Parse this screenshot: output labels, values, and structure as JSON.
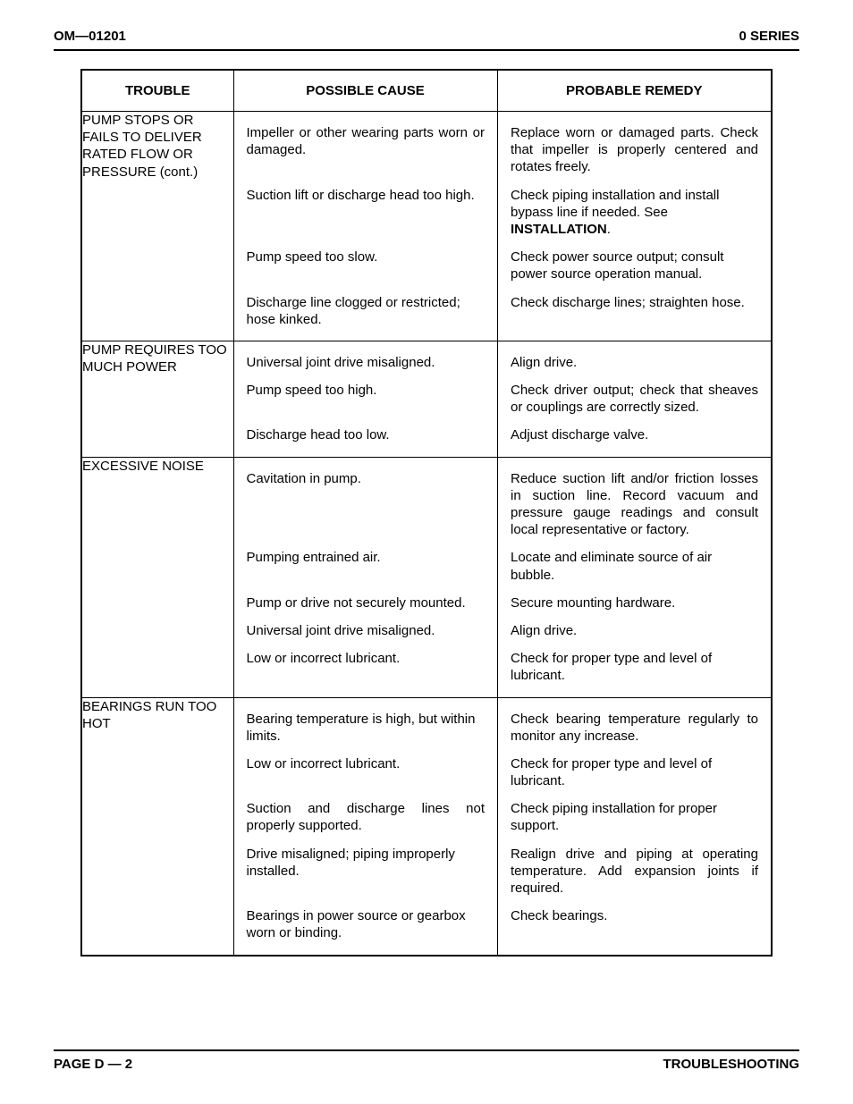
{
  "header": {
    "left": "OM—01201",
    "right": "0 SERIES"
  },
  "columns": {
    "trouble": "TROUBLE",
    "cause": "POSSIBLE CAUSE",
    "remedy": "PROBABLE REMEDY"
  },
  "sections": [
    {
      "trouble": "PUMP STOPS OR FAILS TO DELIVER RATED FLOW OR PRESSURE (cont.)",
      "rows": [
        {
          "cause": "Impeller or other wearing parts worn or damaged.",
          "cause_justify": true,
          "remedy_html": "Replace worn or damaged parts. Check that impeller is properly centered and rotates freely.",
          "remedy_justify": true
        },
        {
          "cause": "Suction lift or discharge head too high.",
          "remedy_html": "Check piping installation and install bypass line if needed. See <b>INSTALLATION</b>."
        },
        {
          "cause": "Pump speed too slow.",
          "remedy_html": "Check power source output; consult power source operation manual."
        },
        {
          "cause": "Discharge line clogged or restricted; hose kinked.",
          "remedy_html": "Check discharge lines; straighten hose.",
          "remedy_justify": true
        }
      ]
    },
    {
      "trouble": "PUMP REQUIRES TOO MUCH POWER",
      "rows": [
        {
          "cause": "Universal joint drive misaligned.",
          "remedy_html": "Align drive."
        },
        {
          "cause": "Pump speed too high.",
          "remedy_html": "Check driver output; check that sheaves or couplings are correctly sized.",
          "remedy_justify": true
        },
        {
          "cause": "Discharge head too low.",
          "remedy_html": "Adjust discharge valve."
        }
      ]
    },
    {
      "trouble": "EXCESSIVE NOISE",
      "rows": [
        {
          "cause": "Cavitation in pump.",
          "remedy_html": "Reduce suction lift and/or friction losses in suction line. Record vacuum and pressure gauge readings and consult local representative or factory.",
          "remedy_justify": true
        },
        {
          "cause": "Pumping entrained air.",
          "remedy_html": "Locate and eliminate source of air bubble."
        },
        {
          "cause": "Pump or drive not securely mounted.",
          "remedy_html": "Secure mounting hardware."
        },
        {
          "cause": "Universal joint drive misaligned.",
          "remedy_html": "Align drive."
        },
        {
          "cause": "Low or incorrect lubricant.",
          "remedy_html": "Check for proper type and level of lubricant."
        }
      ]
    },
    {
      "trouble": "BEARINGS RUN TOO HOT",
      "rows": [
        {
          "cause": "Bearing temperature is high, but within limits.",
          "remedy_html": "Check bearing temperature regularly to monitor any increase.",
          "remedy_justify": true
        },
        {
          "cause": "Low or incorrect lubricant.",
          "remedy_html": "Check for proper type and level of lubricant."
        },
        {
          "cause": "Suction and discharge lines not properly supported.",
          "cause_justify": true,
          "remedy_html": "Check piping installation for proper support."
        },
        {
          "cause": "Drive misaligned; piping improperly installed.",
          "remedy_html": "Realign drive and piping at operating temperature. Add expansion joints if required.",
          "remedy_justify": true
        },
        {
          "cause": "Bearings in power source or gearbox worn or binding.",
          "remedy_html": "Check bearings."
        }
      ]
    }
  ],
  "footer": {
    "left": "PAGE D — 2",
    "right": "TROUBLESHOOTING"
  }
}
